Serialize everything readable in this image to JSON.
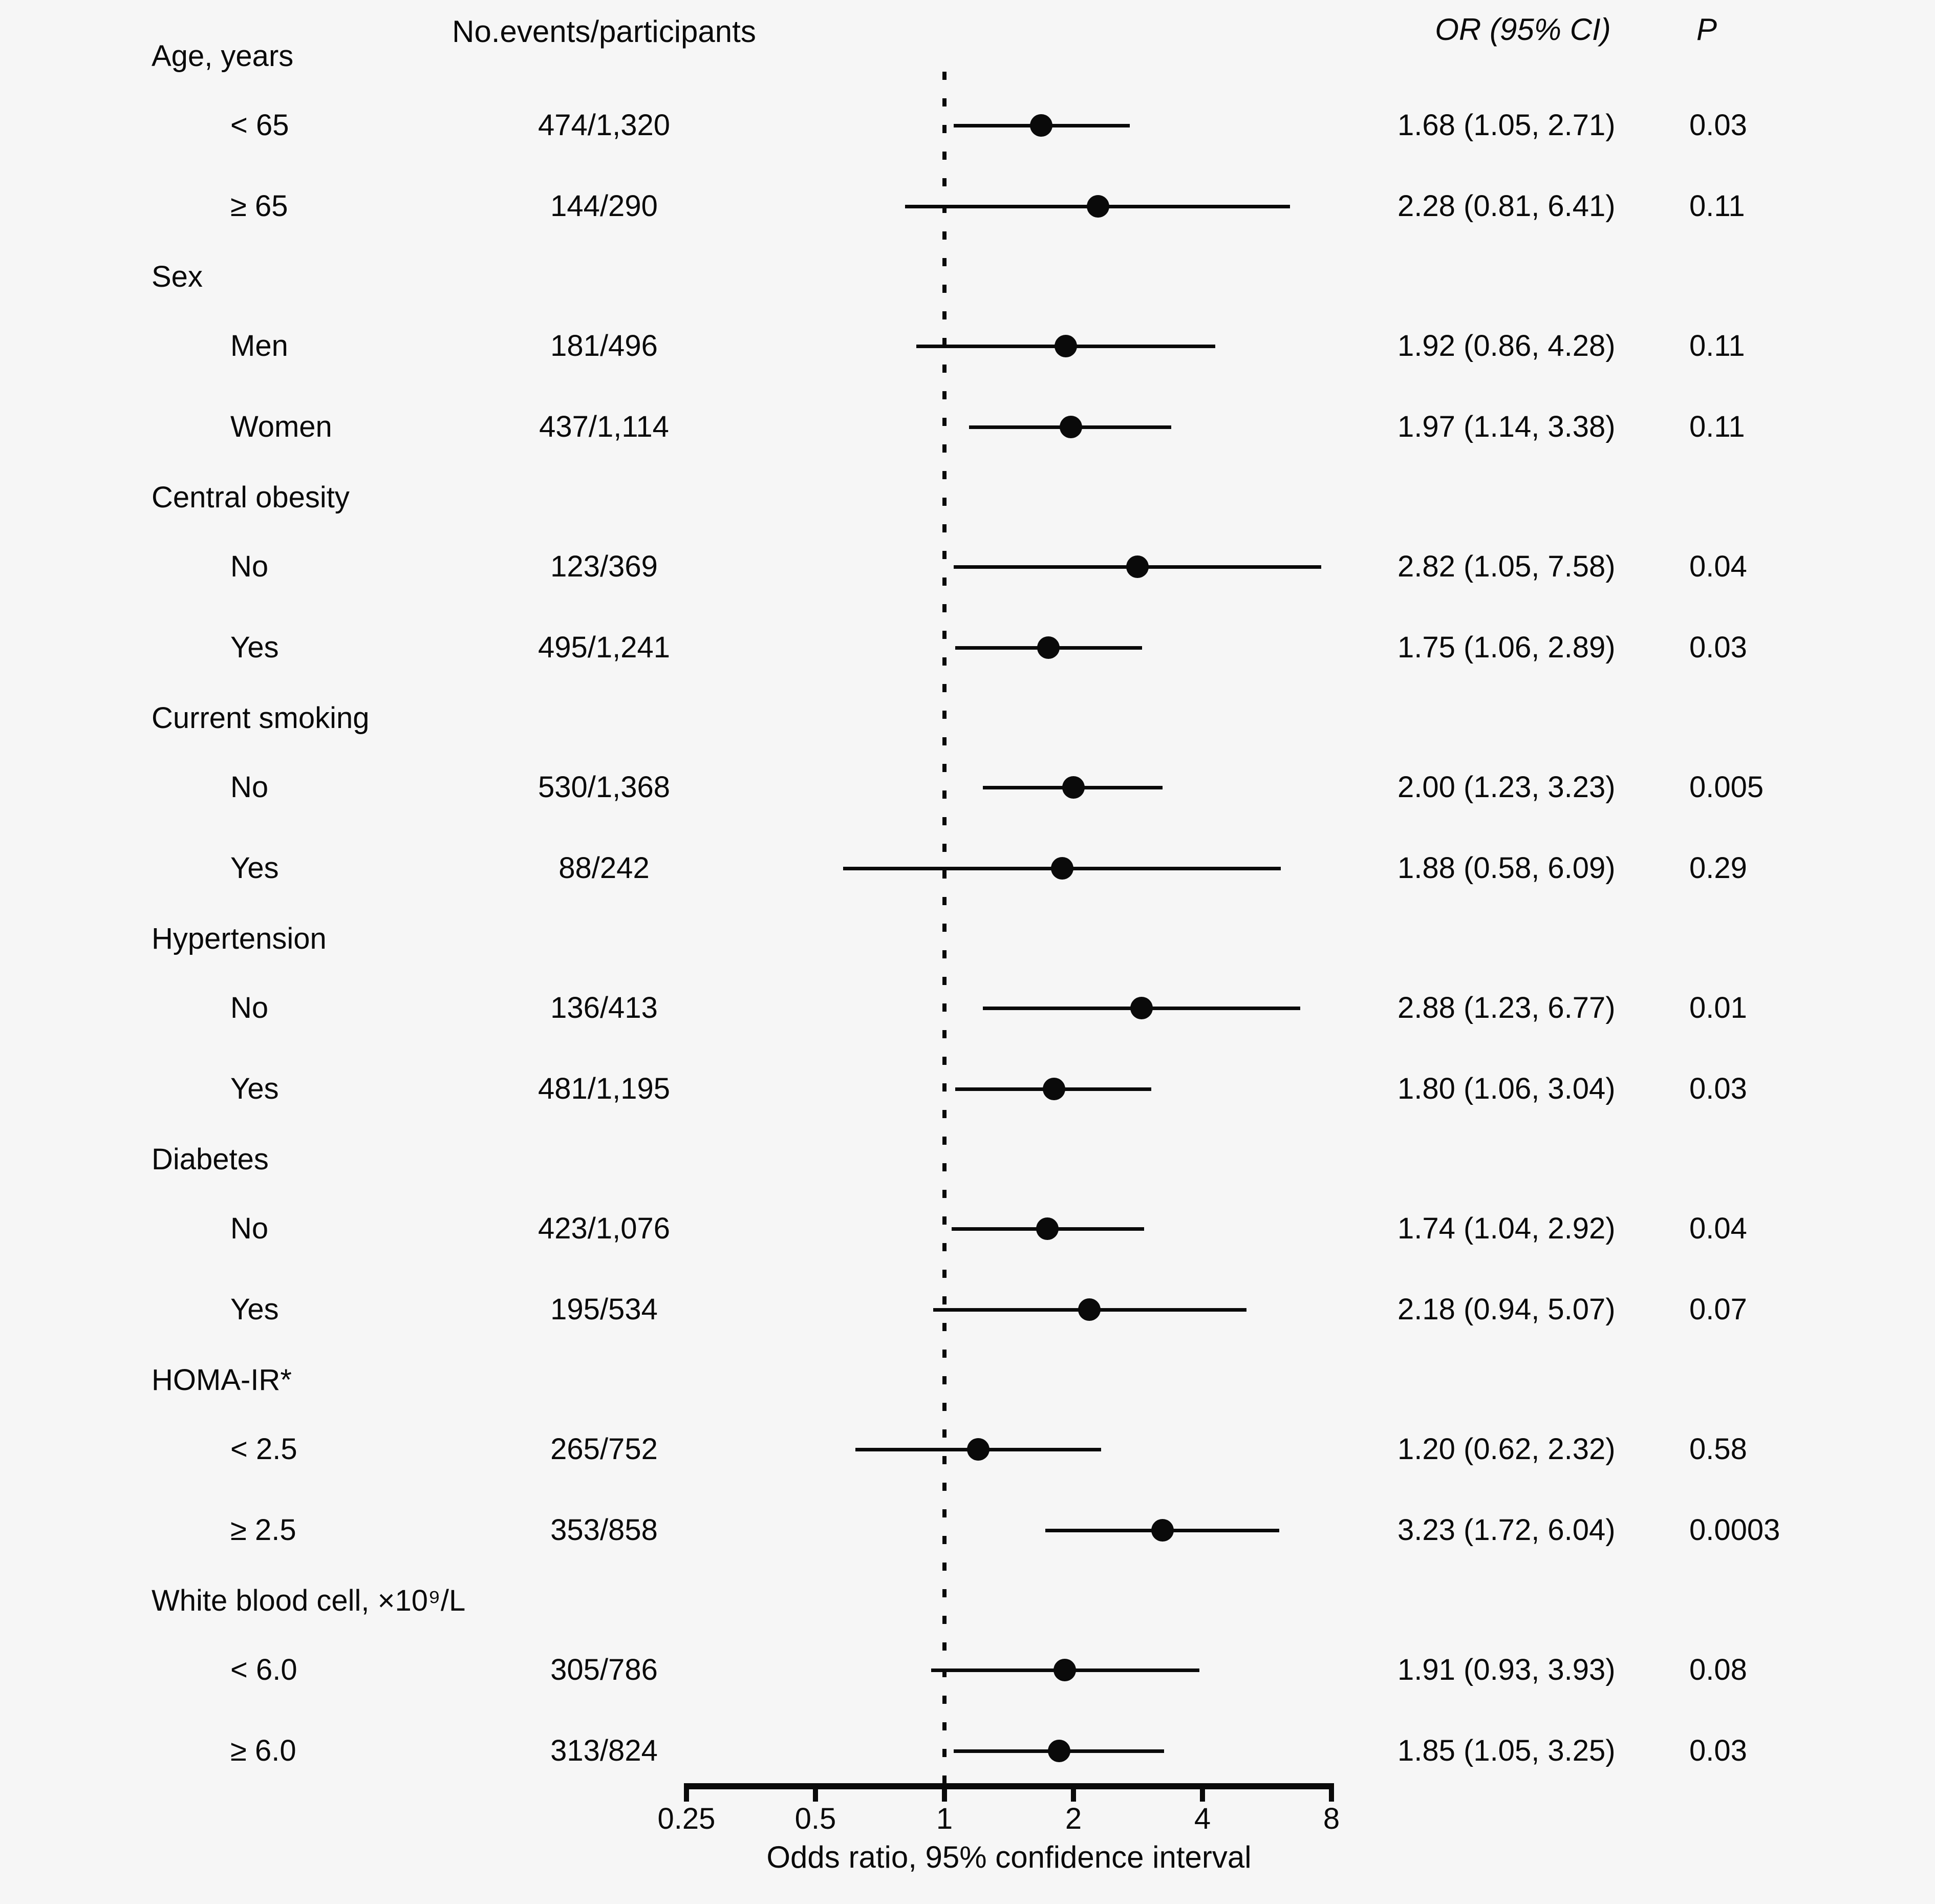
{
  "page": {
    "background": "#f6f6f6",
    "text_color": "#0a0a0a"
  },
  "header": {
    "events": "No.events/participants",
    "or": "OR (95% CI)",
    "p": "P"
  },
  "chart_data": {
    "type": "forest",
    "title": "",
    "axis": {
      "label": "Odds ratio, 95% confidence interval",
      "scale": "log2",
      "min": 0.25,
      "max": 8,
      "reference_line": 1,
      "ticks": [
        {
          "v": 0.25,
          "label": "0.25"
        },
        {
          "v": 0.5,
          "label": "0.5"
        },
        {
          "v": 1,
          "label": "1"
        },
        {
          "v": 2,
          "label": "2"
        },
        {
          "v": 4,
          "label": "4"
        },
        {
          "v": 8,
          "label": "8"
        }
      ]
    },
    "groups": [
      {
        "label": "Age, years",
        "rows": [
          {
            "label": "< 65",
            "events": "474/1,320",
            "or": 1.68,
            "ci_low": 1.05,
            "ci_high": 2.71,
            "or_text": "1.68 (1.05, 2.71)",
            "p": "0.03"
          },
          {
            "label": "≥ 65",
            "events": "144/290",
            "or": 2.28,
            "ci_low": 0.81,
            "ci_high": 6.41,
            "or_text": "2.28 (0.81, 6.41)",
            "p": "0.11"
          }
        ]
      },
      {
        "label": "Sex",
        "rows": [
          {
            "label": "Men",
            "events": "181/496",
            "or": 1.92,
            "ci_low": 0.86,
            "ci_high": 4.28,
            "or_text": "1.92 (0.86, 4.28)",
            "p": "0.11"
          },
          {
            "label": "Women",
            "events": "437/1,114",
            "or": 1.97,
            "ci_low": 1.14,
            "ci_high": 3.38,
            "or_text": "1.97 (1.14, 3.38)",
            "p": "0.11"
          }
        ]
      },
      {
        "label": "Central obesity",
        "rows": [
          {
            "label": "No",
            "events": "123/369",
            "or": 2.82,
            "ci_low": 1.05,
            "ci_high": 7.58,
            "or_text": "2.82 (1.05, 7.58)",
            "p": "0.04"
          },
          {
            "label": "Yes",
            "events": "495/1,241",
            "or": 1.75,
            "ci_low": 1.06,
            "ci_high": 2.89,
            "or_text": "1.75 (1.06, 2.89)",
            "p": "0.03"
          }
        ]
      },
      {
        "label": "Current smoking",
        "rows": [
          {
            "label": "No",
            "events": "530/1,368",
            "or": 2.0,
            "ci_low": 1.23,
            "ci_high": 3.23,
            "or_text": "2.00 (1.23, 3.23)",
            "p": "0.005"
          },
          {
            "label": "Yes",
            "events": "88/242",
            "or": 1.88,
            "ci_low": 0.58,
            "ci_high": 6.09,
            "or_text": "1.88 (0.58, 6.09)",
            "p": "0.29"
          }
        ]
      },
      {
        "label": "Hypertension",
        "rows": [
          {
            "label": "No",
            "events": "136/413",
            "or": 2.88,
            "ci_low": 1.23,
            "ci_high": 6.77,
            "or_text": "2.88 (1.23, 6.77)",
            "p": "0.01"
          },
          {
            "label": "Yes",
            "events": "481/1,195",
            "or": 1.8,
            "ci_low": 1.06,
            "ci_high": 3.04,
            "or_text": "1.80 (1.06, 3.04)",
            "p": "0.03"
          }
        ]
      },
      {
        "label": "Diabetes",
        "rows": [
          {
            "label": "No",
            "events": "423/1,076",
            "or": 1.74,
            "ci_low": 1.04,
            "ci_high": 2.92,
            "or_text": "1.74 (1.04, 2.92)",
            "p": "0.04"
          },
          {
            "label": "Yes",
            "events": "195/534",
            "or": 2.18,
            "ci_low": 0.94,
            "ci_high": 5.07,
            "or_text": "2.18 (0.94, 5.07)",
            "p": "0.07"
          }
        ]
      },
      {
        "label": "HOMA-IR*",
        "rows": [
          {
            "label": "< 2.5",
            "events": "265/752",
            "or": 1.2,
            "ci_low": 0.62,
            "ci_high": 2.32,
            "or_text": "1.20 (0.62, 2.32)",
            "p": "0.58"
          },
          {
            "label": "≥ 2.5",
            "events": "353/858",
            "or": 3.23,
            "ci_low": 1.72,
            "ci_high": 6.04,
            "or_text": "3.23 (1.72, 6.04)",
            "p": "0.0003"
          }
        ]
      },
      {
        "label": "White blood cell, ×10⁹/L",
        "rows": [
          {
            "label": "< 6.0",
            "events": "305/786",
            "or": 1.91,
            "ci_low": 0.93,
            "ci_high": 3.93,
            "or_text": "1.91 (0.93, 3.93)",
            "p": "0.08"
          },
          {
            "label": "≥ 6.0",
            "events": "313/824",
            "or": 1.85,
            "ci_low": 1.05,
            "ci_high": 3.25,
            "or_text": "1.85 (1.05, 3.25)",
            "p": "0.03"
          }
        ]
      }
    ]
  }
}
